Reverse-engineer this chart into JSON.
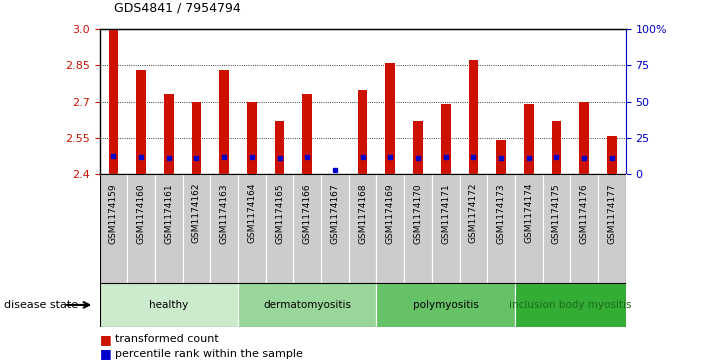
{
  "title": "GDS4841 / 7954794",
  "samples": [
    "GSM1174159",
    "GSM1174160",
    "GSM1174161",
    "GSM1174162",
    "GSM1174163",
    "GSM1174164",
    "GSM1174165",
    "GSM1174166",
    "GSM1174167",
    "GSM1174168",
    "GSM1174169",
    "GSM1174170",
    "GSM1174171",
    "GSM1174172",
    "GSM1174173",
    "GSM1174174",
    "GSM1174175",
    "GSM1174176",
    "GSM1174177"
  ],
  "red_values": [
    3.0,
    2.83,
    2.73,
    2.7,
    2.83,
    2.7,
    2.62,
    2.73,
    2.4,
    2.75,
    2.86,
    2.62,
    2.69,
    2.87,
    2.54,
    2.69,
    2.62,
    2.7,
    2.56
  ],
  "blue_values": [
    2.475,
    2.47,
    2.468,
    2.468,
    2.47,
    2.47,
    2.468,
    2.472,
    2.418,
    2.472,
    2.472,
    2.468,
    2.472,
    2.472,
    2.468,
    2.468,
    2.47,
    2.468,
    2.468
  ],
  "groups": [
    {
      "label": "healthy",
      "count": 5,
      "color": "#cceacc",
      "text_color": "black"
    },
    {
      "label": "dermatomyositis",
      "count": 5,
      "color": "#99d699",
      "text_color": "black"
    },
    {
      "label": "polymyositis",
      "count": 5,
      "color": "#66c266",
      "text_color": "black"
    },
    {
      "label": "inclusion body myositis",
      "count": 4,
      "color": "#33ad33",
      "text_color": "#1a6b1a"
    }
  ],
  "y_min": 2.4,
  "y_max": 3.0,
  "y_ticks": [
    2.4,
    2.55,
    2.7,
    2.85,
    3.0
  ],
  "y_right_ticks": [
    0,
    25,
    50,
    75,
    100
  ],
  "bar_color": "#cc1100",
  "dot_color": "#0000cc",
  "background_color": "#ffffff",
  "label_color_left": "#cc1100",
  "label_color_right": "#0000cc",
  "tick_bg": "#cccccc",
  "bar_width": 0.35
}
